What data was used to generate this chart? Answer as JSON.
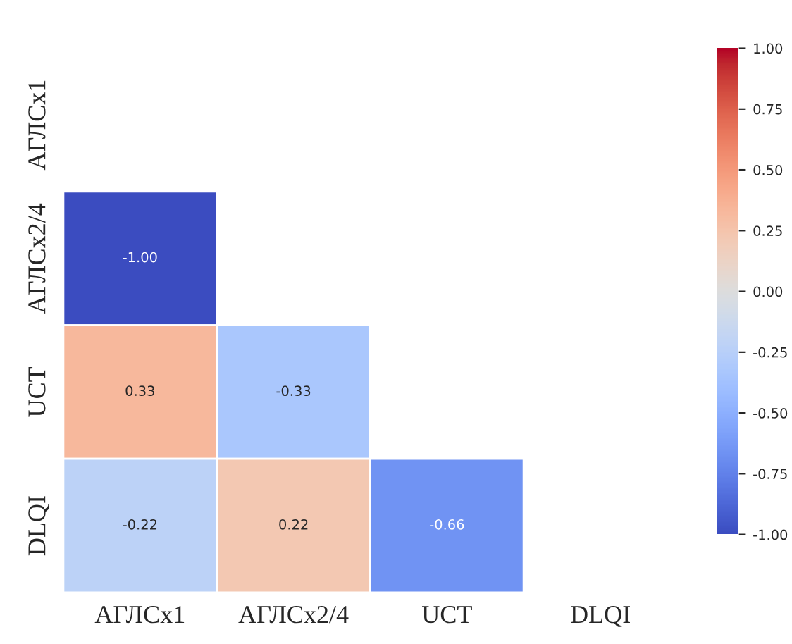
{
  "chart_data": {
    "type": "heatmap",
    "categories": [
      "АГЛСx1",
      "АГЛСx2/4",
      "UCT",
      "DLQI"
    ],
    "y_categories": [
      "АГЛСx1",
      "АГЛСx2/4",
      "UCT",
      "DLQI"
    ],
    "cells": [
      [
        null,
        null,
        null,
        null
      ],
      [
        -1.0,
        null,
        null,
        null
      ],
      [
        0.33,
        -0.33,
        null,
        null
      ],
      [
        -0.22,
        0.22,
        -0.66,
        null
      ]
    ],
    "cell_labels": [
      [
        null,
        null,
        null,
        null
      ],
      [
        "-1.00",
        null,
        null,
        null
      ],
      [
        "0.33",
        "-0.33",
        null,
        null
      ],
      [
        "-0.22",
        "0.22",
        "-0.66",
        null
      ]
    ],
    "clim": [
      -1,
      1
    ],
    "cticks": [
      {
        "value": -1,
        "label": "-1.00"
      },
      {
        "value": -0.75,
        "label": "-0.75"
      },
      {
        "value": -0.5,
        "label": "-0.50"
      },
      {
        "value": -0.25,
        "label": "-0.25"
      },
      {
        "value": 0,
        "label": "0.00"
      },
      {
        "value": 0.25,
        "label": "0.25"
      },
      {
        "value": 0.5,
        "label": "0.50"
      },
      {
        "value": 0.75,
        "label": "0.75"
      },
      {
        "value": 1,
        "label": "1.00"
      }
    ]
  }
}
